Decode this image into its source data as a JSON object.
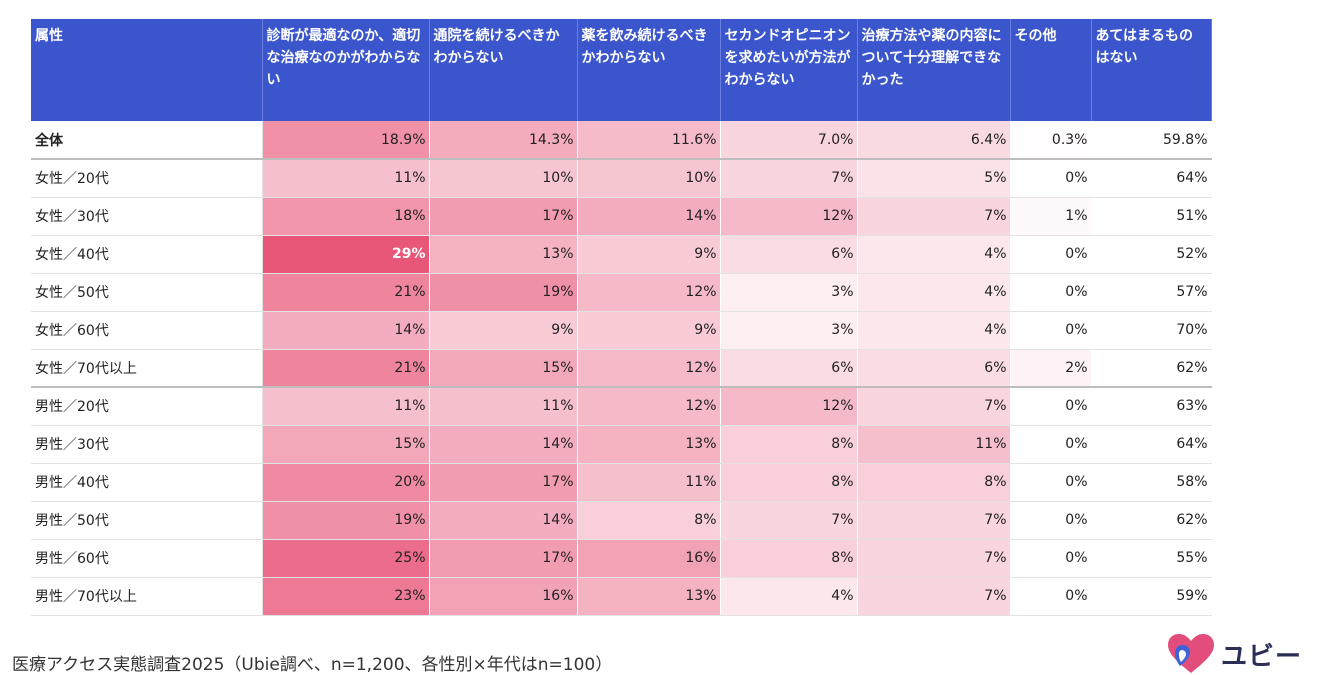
{
  "headers": [
    "属性",
    "診断が最適なのか、適切な治療なのかがわからない",
    "通院を続けるべきかわからない",
    "薬を飲み続けるべきかわからない",
    "セカンドオピニオンを求めたいが方法がわからない",
    "治療方法や薬の内容について十分理解できなかった",
    "その他",
    "あてはまるものはない"
  ],
  "chart_data": {
    "type": "table",
    "columns": [
      "診断が最適なのか、適切な治療なのかがわからない",
      "通院を続けるべきかわからない",
      "薬を飲み続けるべきかわからない",
      "セカンドオピニオンを求めたいが方法がわからない",
      "治療方法や薬の内容について十分理解できなかった",
      "その他",
      "あてはまるものはない"
    ],
    "rows": [
      {
        "label": "全体",
        "cells": [
          "18.9%",
          "14.3%",
          "11.6%",
          "7.0%",
          "6.4%",
          "0.3%",
          "59.8%"
        ],
        "values": [
          18.9,
          14.3,
          11.6,
          7.0,
          6.4,
          0.3,
          59.8
        ]
      },
      {
        "label": "女性／20代",
        "cells": [
          "11%",
          "10%",
          "10%",
          "7%",
          "5%",
          "0%",
          "64%"
        ],
        "values": [
          11,
          10,
          10,
          7,
          5,
          0,
          64
        ]
      },
      {
        "label": "女性／30代",
        "cells": [
          "18%",
          "17%",
          "14%",
          "12%",
          "7%",
          "1%",
          "51%"
        ],
        "values": [
          18,
          17,
          14,
          12,
          7,
          1,
          51
        ]
      },
      {
        "label": "女性／40代",
        "cells": [
          "29%",
          "13%",
          "9%",
          "6%",
          "4%",
          "0%",
          "52%"
        ],
        "values": [
          29,
          13,
          9,
          6,
          4,
          0,
          52
        ]
      },
      {
        "label": "女性／50代",
        "cells": [
          "21%",
          "19%",
          "12%",
          "3%",
          "4%",
          "0%",
          "57%"
        ],
        "values": [
          21,
          19,
          12,
          3,
          4,
          0,
          57
        ]
      },
      {
        "label": "女性／60代",
        "cells": [
          "14%",
          "9%",
          "9%",
          "3%",
          "4%",
          "0%",
          "70%"
        ],
        "values": [
          14,
          9,
          9,
          3,
          4,
          0,
          70
        ]
      },
      {
        "label": "女性／70代以上",
        "cells": [
          "21%",
          "15%",
          "12%",
          "6%",
          "6%",
          "2%",
          "62%"
        ],
        "values": [
          21,
          15,
          12,
          6,
          6,
          2,
          62
        ]
      },
      {
        "label": "男性／20代",
        "cells": [
          "11%",
          "11%",
          "12%",
          "12%",
          "7%",
          "0%",
          "63%"
        ],
        "values": [
          11,
          11,
          12,
          12,
          7,
          0,
          63
        ]
      },
      {
        "label": "男性／30代",
        "cells": [
          "15%",
          "14%",
          "13%",
          "8%",
          "11%",
          "0%",
          "64%"
        ],
        "values": [
          15,
          14,
          13,
          8,
          11,
          0,
          64
        ]
      },
      {
        "label": "男性／40代",
        "cells": [
          "20%",
          "17%",
          "11%",
          "8%",
          "8%",
          "0%",
          "58%"
        ],
        "values": [
          20,
          17,
          11,
          8,
          8,
          0,
          58
        ]
      },
      {
        "label": "男性／50代",
        "cells": [
          "19%",
          "14%",
          "8%",
          "7%",
          "7%",
          "0%",
          "62%"
        ],
        "values": [
          19,
          14,
          8,
          7,
          7,
          0,
          62
        ]
      },
      {
        "label": "男性／60代",
        "cells": [
          "25%",
          "17%",
          "16%",
          "8%",
          "7%",
          "0%",
          "55%"
        ],
        "values": [
          25,
          17,
          16,
          8,
          7,
          0,
          55
        ]
      },
      {
        "label": "男性／70代以上",
        "cells": [
          "23%",
          "16%",
          "13%",
          "4%",
          "7%",
          "0%",
          "59%"
        ],
        "values": [
          23,
          16,
          13,
          4,
          7,
          0,
          59
        ]
      }
    ],
    "heat_color": "#e6476c",
    "header_color": "#3b55cc"
  },
  "footer": {
    "source": "医療アクセス実態調査2025（Ubie調べ、n=1,200、各性別×年代はn=100）",
    "logo_text": "ユビー"
  },
  "colors": {
    "logo_heart": "#e34d7c",
    "logo_heart_blue": "#3e62d8"
  }
}
